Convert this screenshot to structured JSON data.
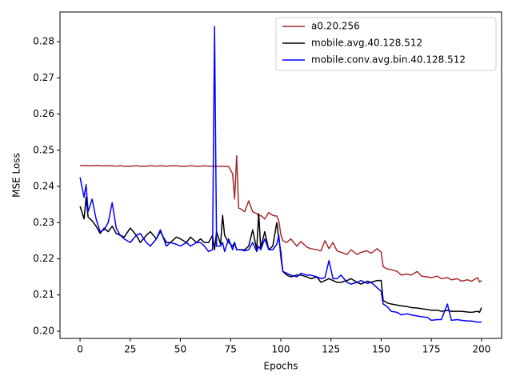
{
  "chart_data": {
    "type": "line",
    "x_label": "Epochs",
    "y_label": "MSE Loss",
    "x": [
      0,
      2,
      3,
      4,
      6,
      8,
      10,
      12,
      14,
      16,
      18,
      20,
      22,
      25,
      28,
      30,
      33,
      35,
      38,
      40,
      43,
      45,
      48,
      50,
      53,
      55,
      58,
      60,
      62,
      64,
      66,
      67,
      68,
      70,
      71,
      72,
      74,
      76,
      77,
      78,
      79,
      80,
      82,
      84,
      86,
      88,
      89,
      90,
      92,
      94,
      96,
      98,
      99,
      100,
      101,
      103,
      105,
      108,
      110,
      113,
      115,
      118,
      120,
      122,
      124,
      126,
      128,
      130,
      133,
      135,
      138,
      140,
      143,
      145,
      148,
      150,
      151,
      153,
      155,
      158,
      160,
      163,
      165,
      168,
      170,
      173,
      175,
      178,
      180,
      183,
      185,
      188,
      190,
      193,
      195,
      198,
      199,
      200
    ],
    "series": [
      {
        "name": "a0.20.256",
        "color": "#a52a2a",
        "values": [
          0.2458,
          0.2457,
          0.2458,
          0.2457,
          0.2457,
          0.2458,
          0.2457,
          0.2457,
          0.2457,
          0.2457,
          0.2456,
          0.2457,
          0.2456,
          0.2456,
          0.2457,
          0.2456,
          0.2456,
          0.2457,
          0.2456,
          0.2457,
          0.2456,
          0.2457,
          0.2457,
          0.2456,
          0.2456,
          0.2457,
          0.2456,
          0.2456,
          0.2457,
          0.2456,
          0.2456,
          0.2456,
          0.2456,
          0.2455,
          0.2456,
          0.2455,
          0.2455,
          0.2435,
          0.2365,
          0.2485,
          0.234,
          0.2338,
          0.233,
          0.236,
          0.233,
          0.2325,
          0.2318,
          0.232,
          0.231,
          0.2328,
          0.232,
          0.2318,
          0.2305,
          0.2268,
          0.225,
          0.2245,
          0.2255,
          0.2235,
          0.2248,
          0.2232,
          0.2228,
          0.2225,
          0.2222,
          0.225,
          0.2228,
          0.2245,
          0.2222,
          0.2218,
          0.2212,
          0.2225,
          0.2212,
          0.2218,
          0.2222,
          0.2215,
          0.2228,
          0.2218,
          0.2178,
          0.2172,
          0.217,
          0.2165,
          0.2155,
          0.2158,
          0.2155,
          0.2165,
          0.2152,
          0.215,
          0.2148,
          0.2152,
          0.2145,
          0.2148,
          0.2142,
          0.2145,
          0.2138,
          0.2142,
          0.2138,
          0.2148,
          0.2136,
          0.214
        ]
      },
      {
        "name": "mobile.avg.40.128.512",
        "color": "#000000",
        "values": [
          0.2345,
          0.231,
          0.237,
          0.2315,
          0.2305,
          0.229,
          0.227,
          0.2285,
          0.2275,
          0.229,
          0.227,
          0.2265,
          0.226,
          0.2285,
          0.2265,
          0.2245,
          0.2265,
          0.2275,
          0.2255,
          0.2275,
          0.2245,
          0.2245,
          0.226,
          0.2255,
          0.2245,
          0.226,
          0.2245,
          0.2255,
          0.2245,
          0.2245,
          0.2265,
          0.2225,
          0.2275,
          0.224,
          0.232,
          0.2265,
          0.2245,
          0.2235,
          0.2245,
          0.2225,
          0.2225,
          0.2225,
          0.2225,
          0.2235,
          0.228,
          0.2225,
          0.2325,
          0.223,
          0.2275,
          0.2225,
          0.2235,
          0.23,
          0.2255,
          0.222,
          0.2165,
          0.2155,
          0.215,
          0.2155,
          0.2155,
          0.215,
          0.2145,
          0.215,
          0.2135,
          0.214,
          0.2145,
          0.214,
          0.2135,
          0.2135,
          0.214,
          0.2145,
          0.2135,
          0.213,
          0.2138,
          0.2135,
          0.214,
          0.214,
          0.2085,
          0.2078,
          0.2075,
          0.2072,
          0.207,
          0.2068,
          0.2065,
          0.2064,
          0.2062,
          0.206,
          0.2058,
          0.2058,
          0.2055,
          0.2057,
          0.2055,
          0.2055,
          0.2055,
          0.2053,
          0.2052,
          0.2055,
          0.2052,
          0.2065
        ]
      },
      {
        "name": "mobile.conv.avg.bin.40.128.512",
        "color": "#0000ff",
        "values": [
          0.2425,
          0.237,
          0.2405,
          0.233,
          0.2365,
          0.231,
          0.2275,
          0.228,
          0.23,
          0.2355,
          0.2285,
          0.2265,
          0.2255,
          0.2245,
          0.2265,
          0.227,
          0.2245,
          0.2235,
          0.2255,
          0.228,
          0.2235,
          0.2245,
          0.224,
          0.2235,
          0.2245,
          0.2235,
          0.2245,
          0.2245,
          0.2235,
          0.222,
          0.2225,
          0.2842,
          0.2235,
          0.2235,
          0.2245,
          0.222,
          0.2255,
          0.2225,
          0.2245,
          0.2225,
          0.2225,
          0.2225,
          0.2222,
          0.2225,
          0.2245,
          0.222,
          0.2235,
          0.2225,
          0.2255,
          0.2225,
          0.2225,
          0.224,
          0.2265,
          0.2205,
          0.2165,
          0.216,
          0.2155,
          0.215,
          0.216,
          0.2155,
          0.2155,
          0.215,
          0.2145,
          0.2148,
          0.2195,
          0.2145,
          0.2145,
          0.2155,
          0.2135,
          0.213,
          0.2135,
          0.214,
          0.2132,
          0.2135,
          0.212,
          0.211,
          0.2075,
          0.2068,
          0.2055,
          0.2052,
          0.2045,
          0.2048,
          0.2045,
          0.2042,
          0.204,
          0.2038,
          0.203,
          0.2032,
          0.2032,
          0.2075,
          0.203,
          0.2032,
          0.203,
          0.2028,
          0.2028,
          0.2025,
          0.2025,
          0.2025
        ]
      }
    ],
    "xlim": [
      -10,
      210
    ],
    "xticks": [
      0,
      25,
      50,
      75,
      100,
      125,
      150,
      175,
      200
    ],
    "ylim": [
      0.198,
      0.2882
    ],
    "yticks": [
      {
        "value": 0.2,
        "label": "0.20"
      },
      0.21,
      0.22,
      0.23,
      0.24,
      0.25,
      0.26,
      0.27,
      0.28
    ],
    "legend": "upper right",
    "grid": false
  }
}
